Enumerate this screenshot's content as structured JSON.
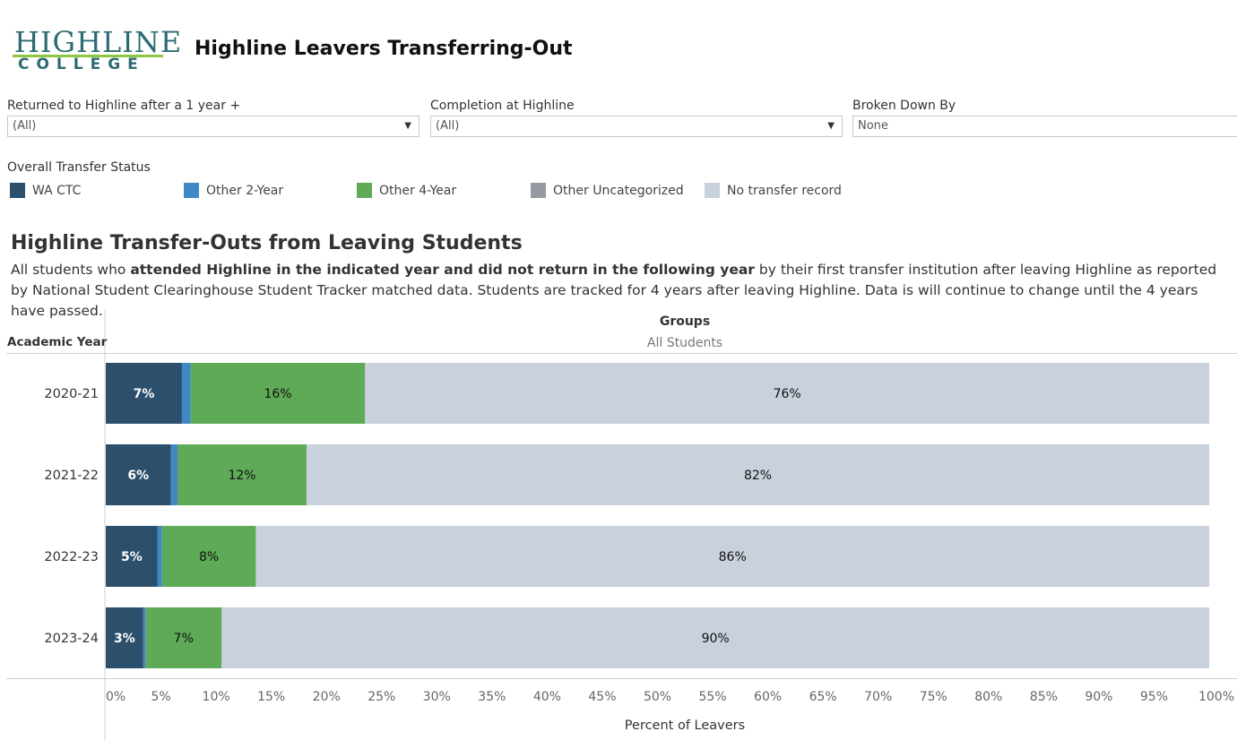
{
  "header": {
    "logo_line1": "HIGHLINE",
    "logo_line2": "COLLEGE",
    "title": "Highline Leavers Transferring-Out"
  },
  "filters": [
    {
      "label": "Returned to Highline after a 1 year +",
      "value": "(All)"
    },
    {
      "label": "Completion at Highline",
      "value": "(All)"
    },
    {
      "label": "Broken Down By",
      "value": "None"
    }
  ],
  "legend": {
    "title": "Overall Transfer Status",
    "items": [
      {
        "label": "WA CTC",
        "color": "#2c4f6b"
      },
      {
        "label": "Other 2-Year",
        "color": "#3f88c5"
      },
      {
        "label": "Other 4-Year",
        "color": "#5faa57"
      },
      {
        "label": "Other Uncategorized",
        "color": "#949aa2"
      },
      {
        "label": "No transfer record",
        "color": "#c8d1dc"
      }
    ]
  },
  "section": {
    "title": "Highline Transfer-Outs from Leaving Students",
    "desc_part1": "All students who ",
    "desc_bold": "attended Highline in the indicated year and did not return in the following year",
    "desc_part2": " by their first transfer institution after leaving Highline as reported by National Student Clearinghouse Student Tracker matched data. Students are tracked for 4 years after leaving Highline. Data is will continue to change until the 4 years have passed."
  },
  "chart_data": {
    "type": "bar",
    "orientation": "horizontal",
    "stacked": true,
    "column_header": "Groups",
    "column_value": "All Students",
    "row_header": "Academic Year",
    "xlabel": "Percent of Leavers",
    "xlim": [
      0,
      100
    ],
    "x_ticks": [
      "0%",
      "5%",
      "10%",
      "15%",
      "20%",
      "25%",
      "30%",
      "35%",
      "40%",
      "45%",
      "50%",
      "55%",
      "60%",
      "65%",
      "70%",
      "75%",
      "80%",
      "85%",
      "90%",
      "95%",
      "100%"
    ],
    "categories": [
      "2020-21",
      "2021-22",
      "2022-23",
      "2023-24"
    ],
    "series": [
      {
        "name": "WA CTC",
        "color": "#2c4f6b",
        "values": [
          6.9,
          5.9,
          4.7,
          3.4
        ],
        "labels": [
          "7%",
          "6%",
          "5%",
          "3%"
        ]
      },
      {
        "name": "Other 2-Year",
        "color": "#3f88c5",
        "values": [
          0.8,
          0.6,
          0.4,
          0.2
        ],
        "labels": [
          "",
          "",
          "",
          ""
        ]
      },
      {
        "name": "Other 4-Year",
        "color": "#5faa57",
        "values": [
          15.8,
          11.7,
          8.5,
          6.9
        ],
        "labels": [
          "16%",
          "12%",
          "8%",
          "7%"
        ]
      },
      {
        "name": "Other Uncategorized",
        "color": "#949aa2",
        "values": [
          0,
          0,
          0,
          0
        ],
        "labels": [
          "",
          "",
          "",
          ""
        ]
      },
      {
        "name": "No transfer record",
        "color": "#c8d1dc",
        "values": [
          76.5,
          81.8,
          86.4,
          89.5
        ],
        "labels": [
          "76%",
          "82%",
          "86%",
          "90%"
        ]
      }
    ]
  }
}
